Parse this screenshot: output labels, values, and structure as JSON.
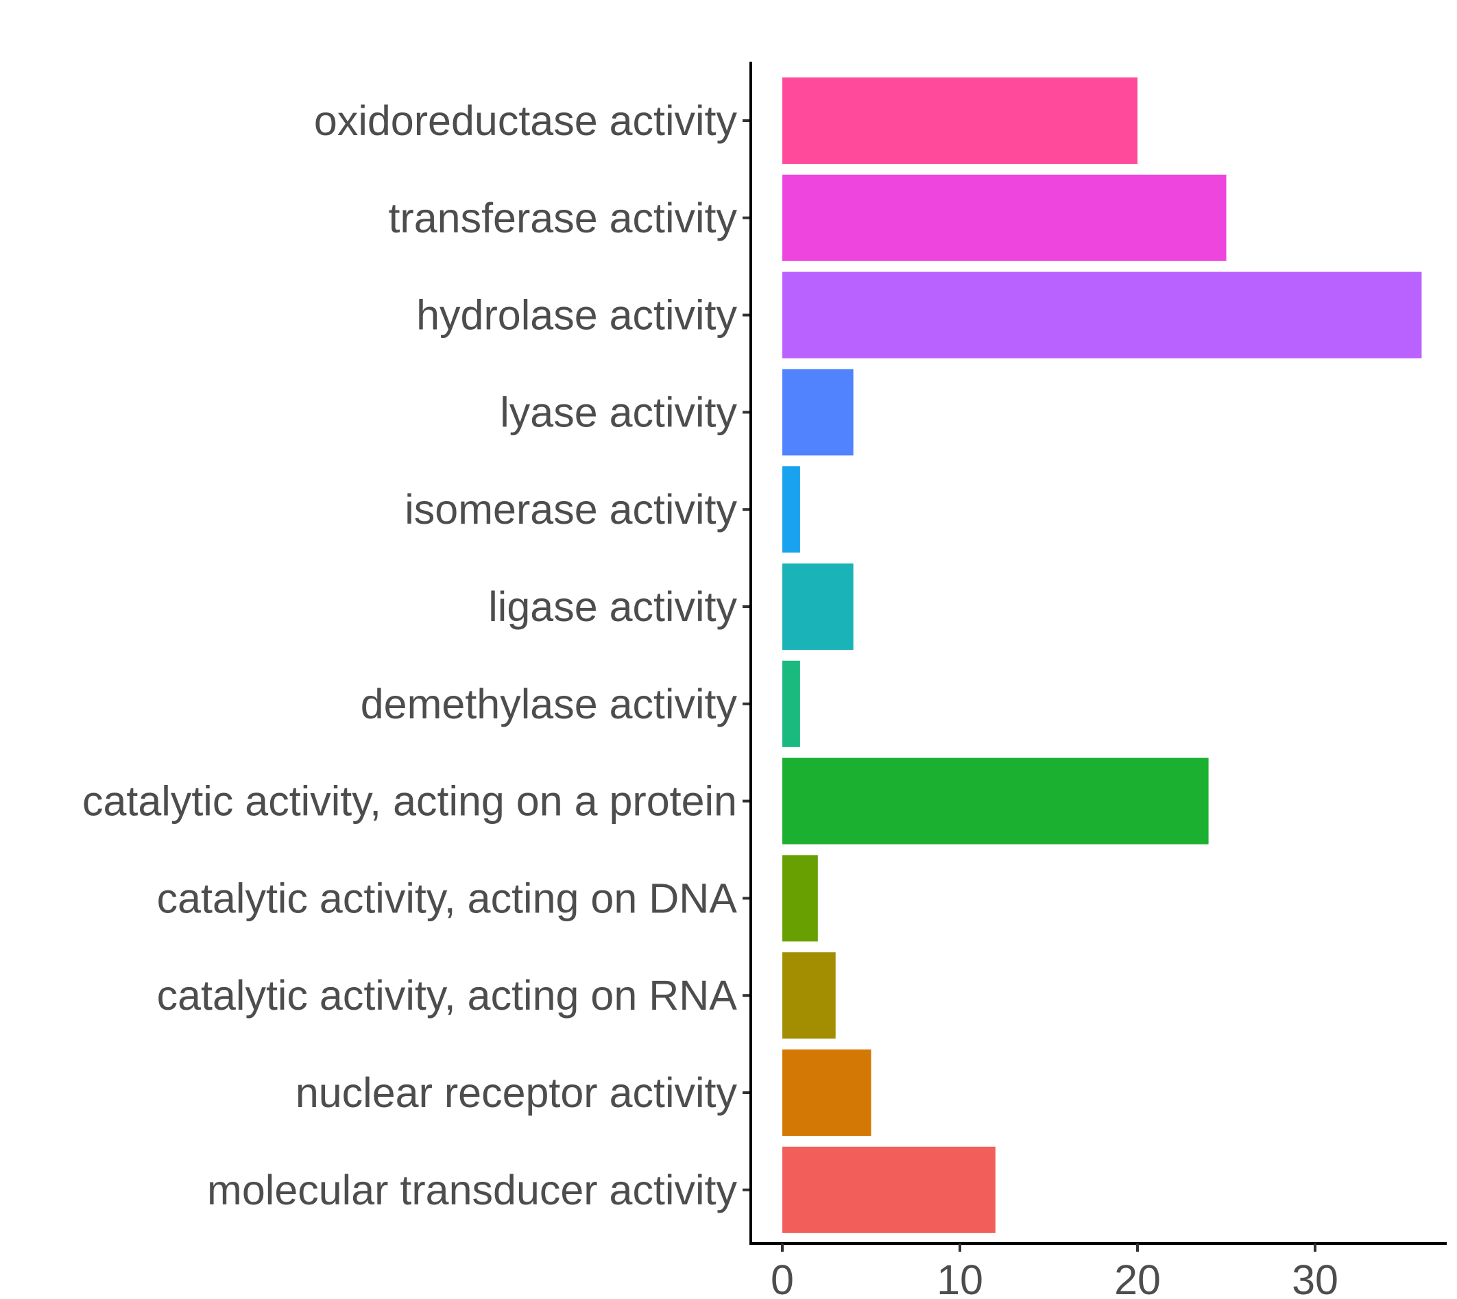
{
  "chart_data": {
    "type": "bar",
    "orientation": "horizontal",
    "title": "",
    "xlabel": "",
    "ylabel": "",
    "categories": [
      "oxidoreductase activity",
      "transferase activity",
      "hydrolase activity",
      "lyase activity",
      "isomerase activity",
      "ligase activity",
      "demethylase activity",
      "catalytic activity, acting on a protein",
      "catalytic activity, acting on DNA",
      "catalytic activity, acting on RNA",
      "nuclear receptor activity",
      "molecular transducer activity"
    ],
    "values": [
      20,
      25,
      36,
      4,
      1,
      4,
      1,
      24,
      2,
      3,
      5,
      12
    ],
    "colors": [
      "#FF4A9C",
      "#EF45DF",
      "#B962FF",
      "#5183FF",
      "#18A2EF",
      "#1AB4B8",
      "#1AB97E",
      "#1BB02F",
      "#67A000",
      "#A38D00",
      "#D37805",
      "#F25F5A"
    ],
    "xlim": [
      -1.8,
      37.8
    ],
    "xticks": [
      0,
      10,
      20,
      30
    ],
    "xtick_labels": [
      "0",
      "10",
      "20",
      "30"
    ],
    "grid": false,
    "legend": "none"
  }
}
